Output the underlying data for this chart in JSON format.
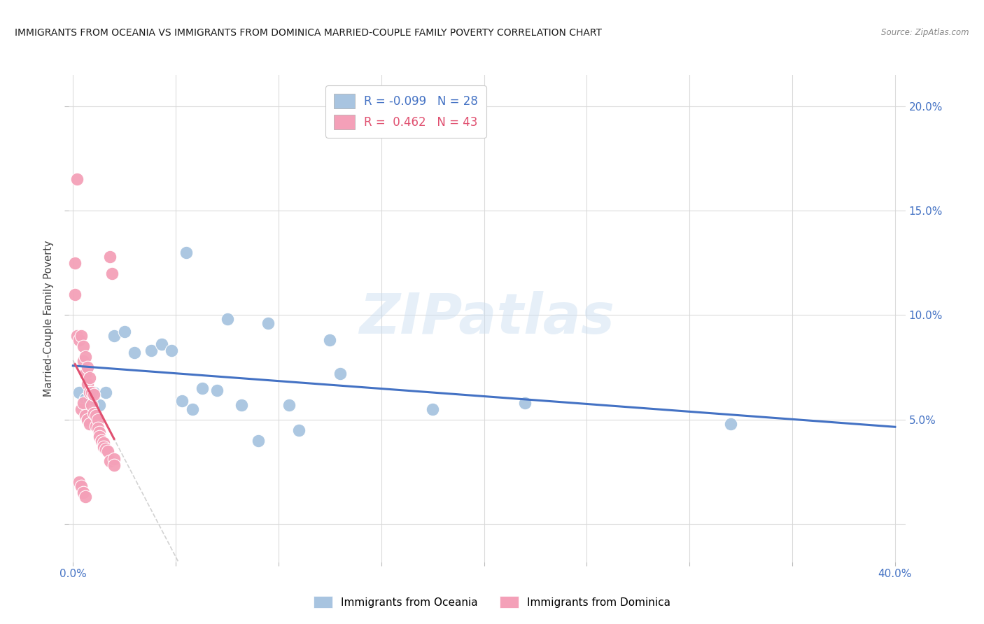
{
  "title": "IMMIGRANTS FROM OCEANIA VS IMMIGRANTS FROM DOMINICA MARRIED-COUPLE FAMILY POVERTY CORRELATION CHART",
  "source": "Source: ZipAtlas.com",
  "ylabel": "Married-Couple Family Poverty",
  "xlim": [
    -0.002,
    0.405
  ],
  "ylim": [
    -0.018,
    0.215
  ],
  "R_oceania": -0.099,
  "N_oceania": 28,
  "R_dominica": 0.462,
  "N_dominica": 43,
  "color_oceania": "#a8c4e0",
  "color_dominica": "#f4a0b8",
  "color_line_oceania": "#4472c4",
  "color_line_dominica": "#e05070",
  "watermark_text": "ZIPatlas",
  "legend_label_oceania": "Immigrants from Oceania",
  "legend_label_dominica": "Immigrants from Dominica",
  "oceania_x": [
    0.003,
    0.006,
    0.008,
    0.01,
    0.013,
    0.016,
    0.02,
    0.025,
    0.03,
    0.038,
    0.043,
    0.048,
    0.053,
    0.058,
    0.063,
    0.07,
    0.075,
    0.082,
    0.09,
    0.095,
    0.105,
    0.11,
    0.125,
    0.13,
    0.175,
    0.22,
    0.32,
    0.055
  ],
  "oceania_y": [
    0.063,
    0.06,
    0.06,
    0.063,
    0.057,
    0.063,
    0.09,
    0.092,
    0.082,
    0.083,
    0.086,
    0.083,
    0.059,
    0.055,
    0.065,
    0.064,
    0.098,
    0.057,
    0.04,
    0.096,
    0.057,
    0.045,
    0.088,
    0.072,
    0.055,
    0.058,
    0.048,
    0.13
  ],
  "dominica_x": [
    0.001,
    0.001,
    0.002,
    0.003,
    0.004,
    0.004,
    0.005,
    0.005,
    0.005,
    0.006,
    0.006,
    0.006,
    0.007,
    0.007,
    0.007,
    0.008,
    0.008,
    0.008,
    0.009,
    0.009,
    0.01,
    0.01,
    0.011,
    0.011,
    0.012,
    0.012,
    0.013,
    0.013,
    0.014,
    0.015,
    0.015,
    0.016,
    0.017,
    0.018,
    0.018,
    0.019,
    0.02,
    0.02,
    0.003,
    0.004,
    0.005,
    0.006,
    0.002
  ],
  "dominica_y": [
    0.125,
    0.11,
    0.09,
    0.088,
    0.09,
    0.055,
    0.085,
    0.078,
    0.058,
    0.08,
    0.072,
    0.052,
    0.075,
    0.067,
    0.05,
    0.07,
    0.063,
    0.048,
    0.063,
    0.057,
    0.062,
    0.053,
    0.052,
    0.047,
    0.05,
    0.046,
    0.044,
    0.042,
    0.04,
    0.039,
    0.037,
    0.036,
    0.035,
    0.128,
    0.03,
    0.12,
    0.031,
    0.028,
    0.02,
    0.018,
    0.015,
    0.013,
    0.165
  ]
}
